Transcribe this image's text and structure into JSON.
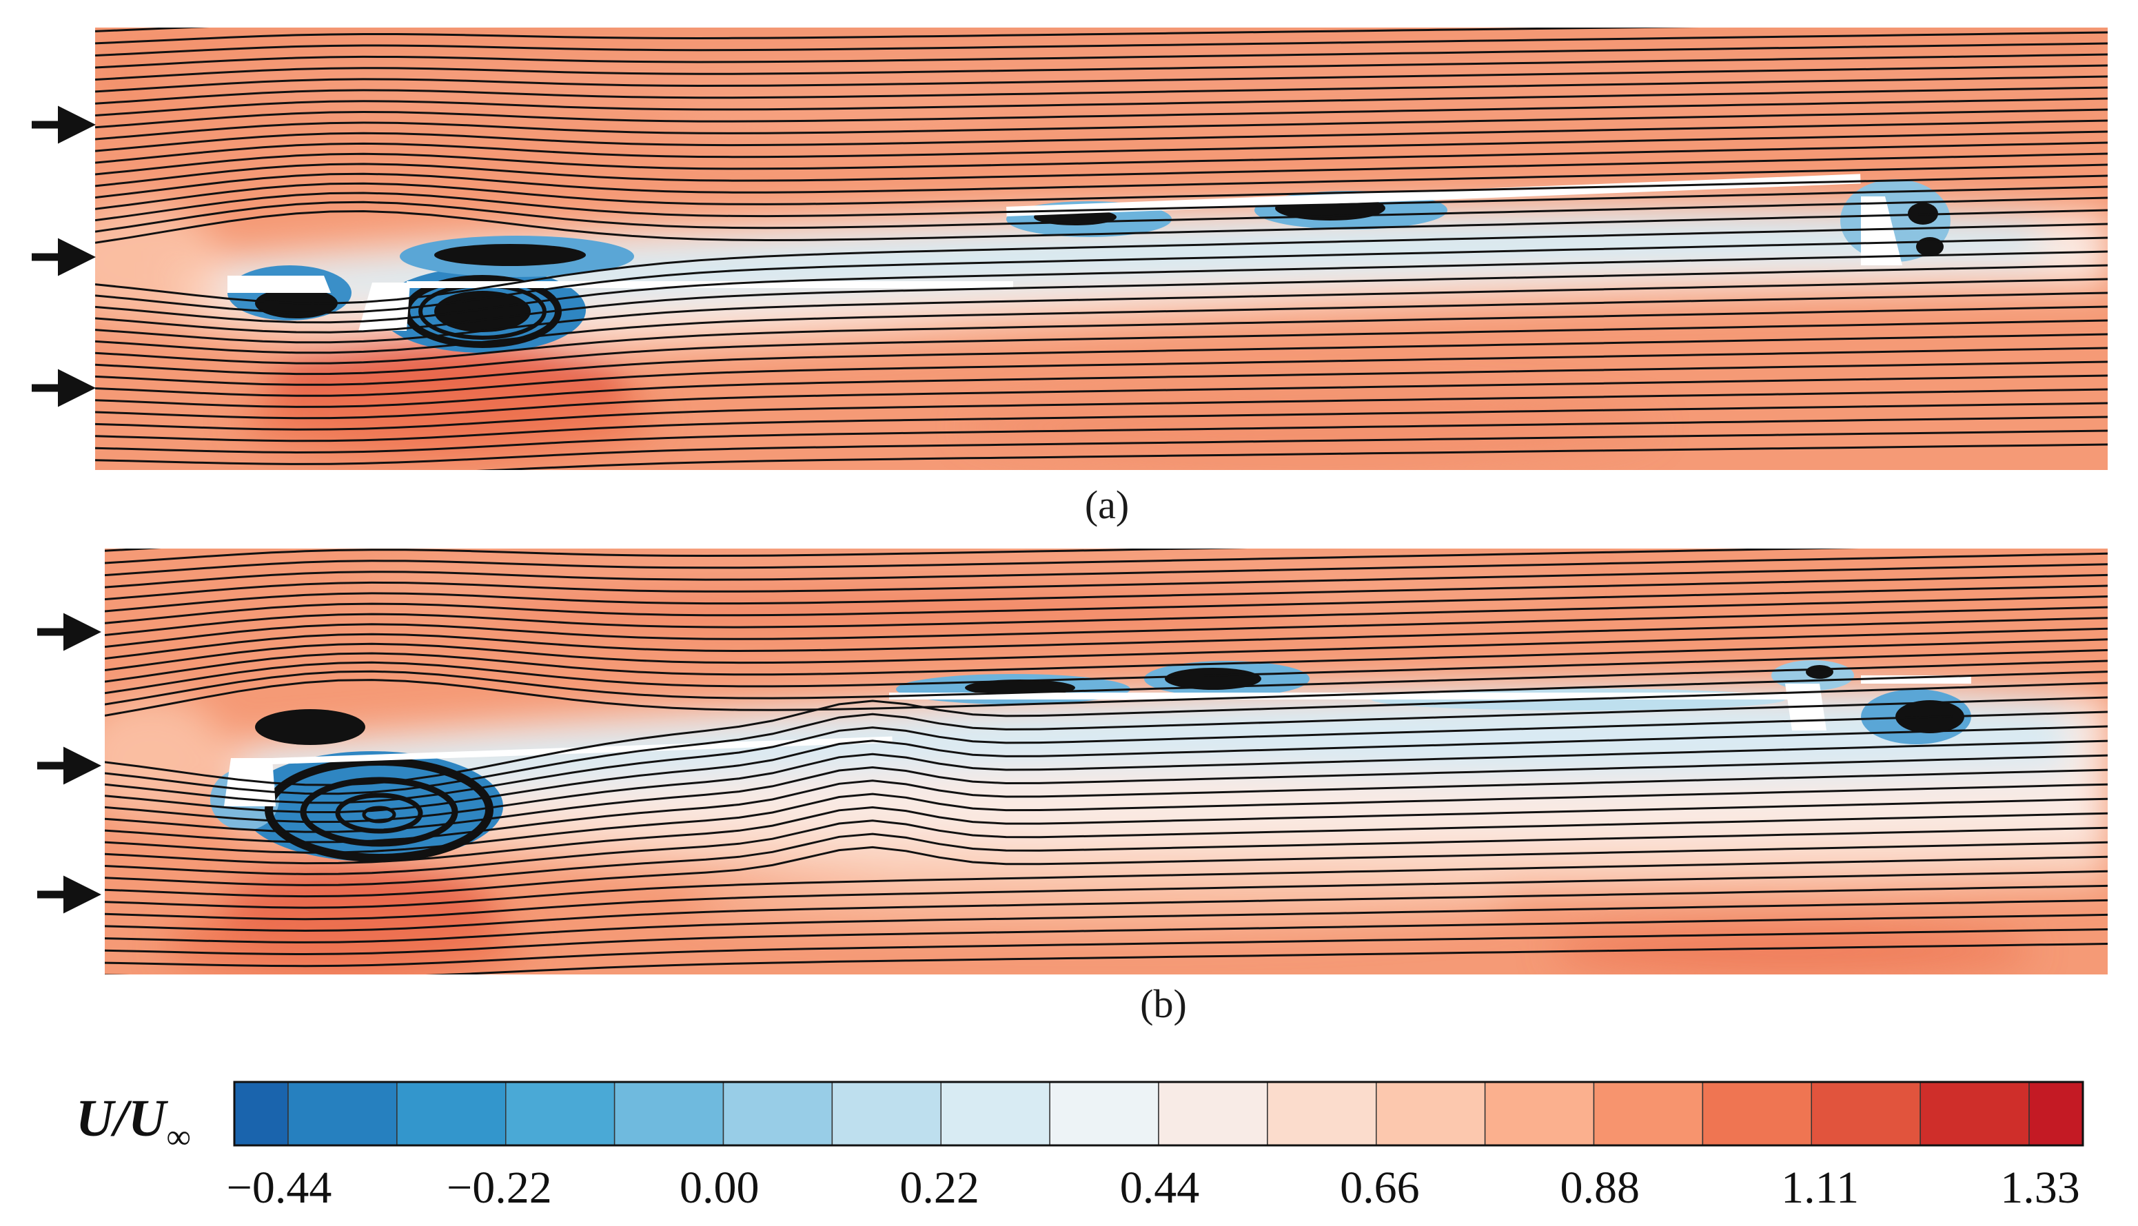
{
  "panels": [
    {
      "id": "a",
      "label": "(a)",
      "inflow_arrows": 3
    },
    {
      "id": "b",
      "label": "(b)",
      "inflow_arrows": 3
    }
  ],
  "colorbar": {
    "title_main": "U/U",
    "title_sub": "∞",
    "tick_labels": [
      "−0.44",
      "−0.22",
      "0.00",
      "0.22",
      "0.44",
      "0.66",
      "0.88",
      "1.11",
      "1.33"
    ],
    "level_colors": [
      "#1a64ad",
      "#2680bf",
      "#3396cc",
      "#4aa9d6",
      "#6fbade",
      "#98cde7",
      "#bedfee",
      "#d8ebf3",
      "#edf3f6",
      "#f8ebe6",
      "#fbdccc",
      "#fcc8ae",
      "#fbb08e",
      "#f7946e",
      "#ef7552",
      "#e1543d",
      "#cf2e2a",
      "#c41a24"
    ]
  },
  "colors": {
    "background_flow": "#f59a76",
    "streamline": "#111111",
    "arrow": "#111111"
  }
}
